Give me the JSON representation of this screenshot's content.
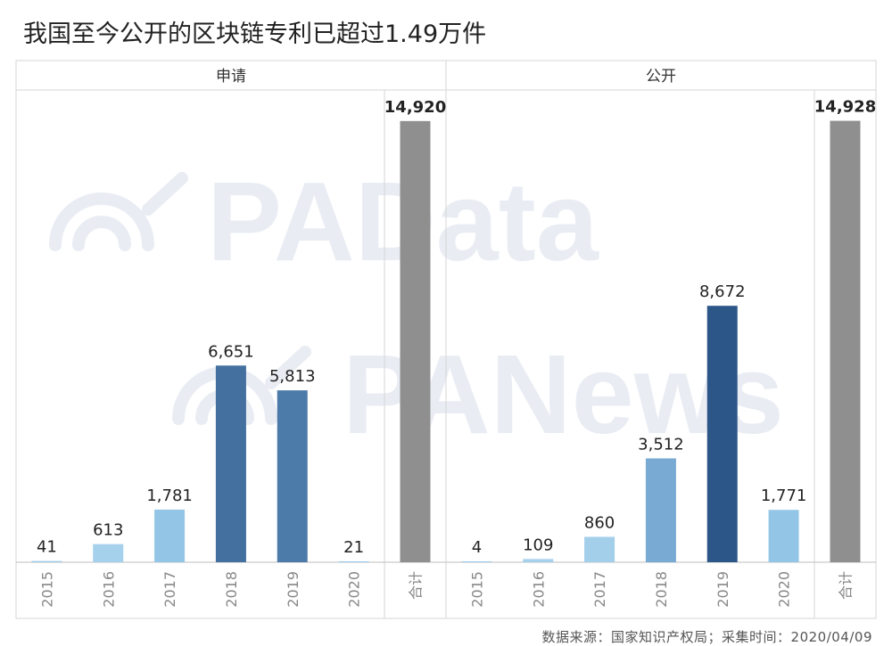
{
  "title": "我国至今公开的区块链专利已超过1.49万件",
  "source_note": "数据来源：国家知识产权局；采集时间：2020/04/09",
  "watermarks": [
    "PAData",
    "PANews"
  ],
  "colors": {
    "light": "#9ccbe9",
    "mid": "#79aad3",
    "deep": "#48729f",
    "darkest": "#2d5688",
    "total": "#8f8f8f",
    "border": "#d5d5d5",
    "watermark": "#e9edf3"
  },
  "chart_data": [
    {
      "type": "bar",
      "panel_title": "申请",
      "categories": [
        "2015",
        "2016",
        "2017",
        "2018",
        "2019",
        "2020",
        "合计"
      ],
      "values": [
        41,
        613,
        1781,
        6651,
        5813,
        21,
        14920
      ],
      "value_labels": [
        "41",
        "613",
        "1,781",
        "6,651",
        "5,813",
        "21",
        "14,920"
      ],
      "bar_colors": [
        "#9ccbe9",
        "#a6d1ec",
        "#93c6e6",
        "#43709f",
        "#4d7ba9",
        "#9ccbe9",
        "#8f8f8f"
      ],
      "ylim": [
        0,
        16000
      ]
    },
    {
      "type": "bar",
      "panel_title": "公开",
      "categories": [
        "2015",
        "2016",
        "2017",
        "2018",
        "2019",
        "2020",
        "合计"
      ],
      "values": [
        4,
        109,
        860,
        3512,
        8672,
        1771,
        14928
      ],
      "value_labels": [
        "4",
        "109",
        "860",
        "3,512",
        "8,672",
        "1,771",
        "14,928"
      ],
      "bar_colors": [
        "#9ccbe9",
        "#a6d1ec",
        "#a3cfeb",
        "#79aad3",
        "#2d5688",
        "#93c6e6",
        "#8f8f8f"
      ],
      "ylim": [
        0,
        16000
      ]
    }
  ]
}
